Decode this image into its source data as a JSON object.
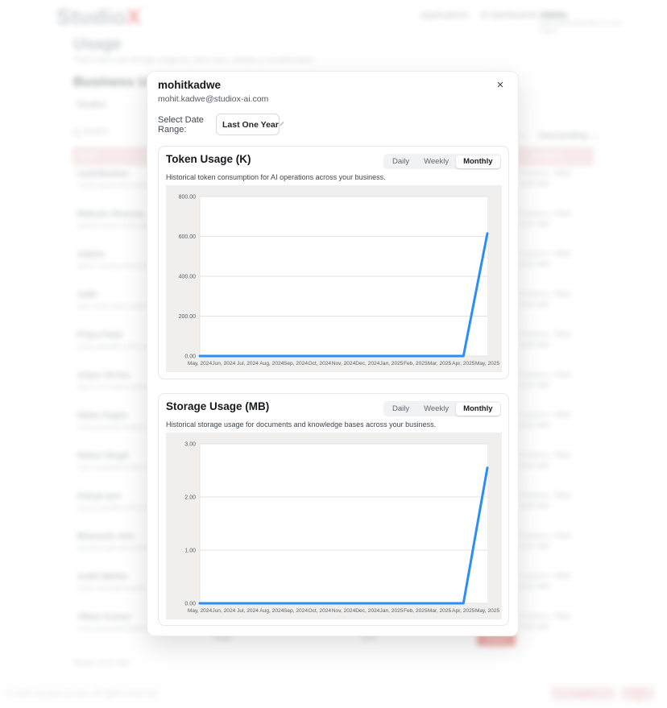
{
  "brand": {
    "logo_studio": "Studio",
    "logo_x": "X",
    "tm": "™",
    "accent_red": "#e0564d",
    "chart_line_color": "#2b8ef3",
    "table_header_pink": "#eed3d4"
  },
  "nav": {
    "items": [
      "Applications",
      "AI dashboards",
      "Admin"
    ],
    "admin_sub": [
      "mohit.kadwe@studiox-ai.com",
      "Logout"
    ]
  },
  "page": {
    "title": "Usage",
    "subtitle": "Track token and storage usage for users here, weekly or monthly basis.",
    "section_title": "Business Usage",
    "tab": "Studiox",
    "search_label": "Search",
    "sort_field": "Tokens",
    "sort_order": "Descending"
  },
  "table": {
    "headers": [
      "User",
      "Actions"
    ],
    "rows": [
      {
        "name": "mohitkadwe",
        "email": "mohit.kadwe@studiox-ai.com",
        "usage1": "0 tokens",
        "usage2": "0.00 MB",
        "action": "View"
      },
      {
        "name": "Rakesh Sharma",
        "email": "rakesh.sharma@studiox-ai.com",
        "usage1": "0 tokens",
        "usage2": "0.00 MB",
        "action": "View"
      },
      {
        "name": "Admin",
        "email": "admin.studiox@studiox-ai.com",
        "usage1": "0 tokens",
        "usage2": "0.00 MB",
        "action": "View"
      },
      {
        "name": "Aditi",
        "email": "aditi.sharma@studiox-ai.com",
        "usage1": "0 tokens",
        "usage2": "0.00 MB",
        "action": "View"
      },
      {
        "name": "Priya Patel",
        "email": "priya.patel@studiox-ai.com",
        "usage1": "0 tokens",
        "usage2": "0.00 MB",
        "action": "View"
      },
      {
        "name": "Arjun Verma",
        "email": "arjun.verma@studiox-ai.com",
        "usage1": "0 tokens",
        "usage2": "0.00 MB",
        "action": "View"
      },
      {
        "name": "Neha Gupta",
        "email": "neha.gupta@studiox-ai.com",
        "usage1": "0 tokens",
        "usage2": "0.00 MB",
        "action": "View"
      },
      {
        "name": "Rahul Singh",
        "email": "rahul.singh@studiox-ai.com",
        "usage1": "0 tokens",
        "usage2": "0.00 MB",
        "action": "View"
      },
      {
        "name": "Kavya Iyer",
        "email": "kavya.iyer@studiox-ai.com",
        "usage1": "0 tokens",
        "usage2": "0.00 MB",
        "action": "View"
      },
      {
        "name": "Bhavesh Jain",
        "email": "bhavesh.jain@studiox-ai.com",
        "usage1": "0 tokens",
        "usage2": "0.00 MB",
        "action": "View"
      },
      {
        "name": "Ankit Mehta",
        "email": "ankit.mehta@studiox-ai.com",
        "usage1": "0 tokens",
        "usage2": "0.00 MB",
        "action": "View"
      },
      {
        "name": "Vikas Kumar",
        "email": "vikas.kumar@studiox-ai.com",
        "usage1": "0 tokens",
        "usage2": "0.00 MB",
        "action": "View"
      }
    ],
    "total_label": "Total",
    "total_value": "100",
    "export_label": "Export",
    "pagination": "Rows 10 of 100"
  },
  "footer": {
    "copyright": "© 2025 StudioX-ai.com. All rights reserved.",
    "buttons": [
      "Logout",
      "Sign Up"
    ]
  },
  "modal": {
    "title": "mohitkadwe",
    "email": "mohit.kadwe@studiox-ai.com",
    "close": "×",
    "date_range_label": "Select Date Range:",
    "date_range_value": "Last One Year"
  },
  "chart_data": [
    {
      "type": "line",
      "title": "Token Usage (K)",
      "subtitle": "Historical token consumption for AI operations across your business.",
      "toggles": [
        "Daily",
        "Weekly",
        "Monthly"
      ],
      "selected_toggle": "Monthly",
      "categories": [
        "May, 2024",
        "Jun, 2024",
        "Jul, 2024",
        "Aug, 2024",
        "Sep, 2024",
        "Oct, 2024",
        "Nov, 2024",
        "Dec, 2024",
        "Jan, 2025",
        "Feb, 2025",
        "Mar, 2025",
        "Apr, 2025",
        "May, 2025"
      ],
      "values": [
        0,
        0,
        0,
        0,
        0,
        0,
        0,
        0,
        0,
        0,
        0,
        0,
        615
      ],
      "xlabel": "",
      "ylabel": "",
      "ylim": [
        0,
        800
      ],
      "yticks": [
        0,
        200,
        400,
        600,
        800
      ],
      "grid": true,
      "legend": "none",
      "line_color": "#2b8ef3"
    },
    {
      "type": "line",
      "title": "Storage Usage (MB)",
      "subtitle": "Historical storage usage for documents and knowledge bases across your business.",
      "toggles": [
        "Daily",
        "Weekly",
        "Monthly"
      ],
      "selected_toggle": "Monthly",
      "categories": [
        "May, 2024",
        "Jun, 2024",
        "Jul, 2024",
        "Aug, 2024",
        "Sep, 2024",
        "Oct, 2024",
        "Nov, 2024",
        "Dec, 2024",
        "Jan, 2025",
        "Feb, 2025",
        "Mar, 2025",
        "Apr, 2025",
        "May, 2025"
      ],
      "values": [
        0,
        0,
        0,
        0,
        0,
        0,
        0,
        0,
        0,
        0,
        0,
        0,
        2.55
      ],
      "xlabel": "",
      "ylabel": "",
      "ylim": [
        0,
        3
      ],
      "yticks": [
        0,
        1,
        2,
        3
      ],
      "grid": true,
      "legend": "none",
      "line_color": "#2b8ef3"
    }
  ]
}
